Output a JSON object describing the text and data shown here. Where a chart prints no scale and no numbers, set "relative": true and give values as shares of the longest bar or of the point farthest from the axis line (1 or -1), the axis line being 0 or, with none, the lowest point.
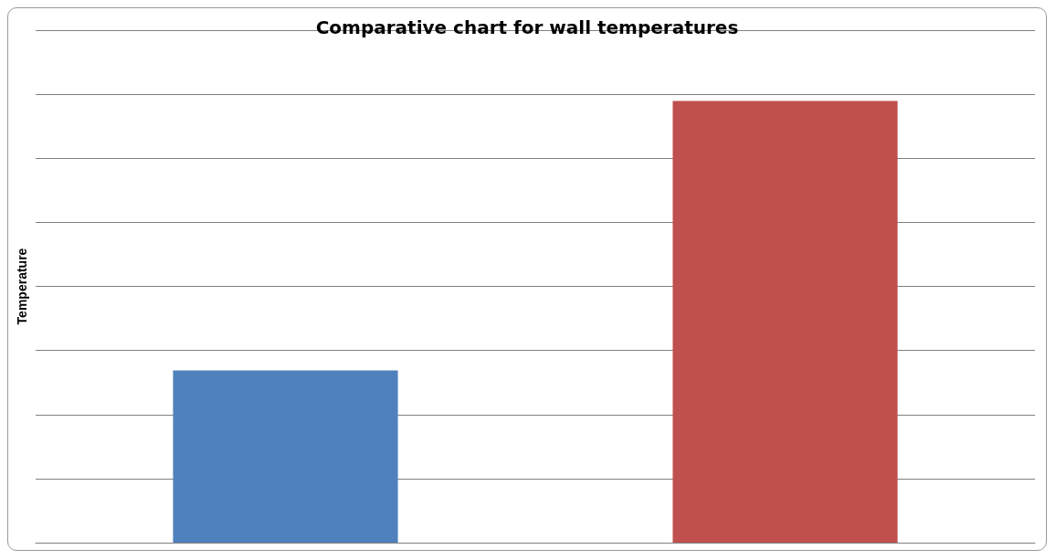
{
  "chart_data": {
    "type": "bar",
    "title": "Comparative chart for wall temperatures",
    "ylabel": "Temperature",
    "categories": [
      null,
      null
    ],
    "values": [
      0.39,
      1
    ],
    "colors": [
      "#4f81bd",
      "#c0504d"
    ],
    "relative": true,
    "grid": true
  }
}
